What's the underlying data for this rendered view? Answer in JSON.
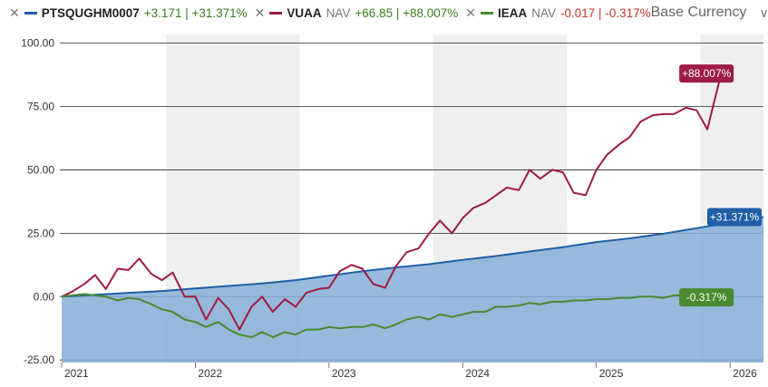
{
  "legend": {
    "items": [
      {
        "ticker": "PTSQUGHM0007",
        "nav_label": "",
        "change": "+3.171 | +31.371%",
        "change_sign": "pos",
        "color": "#1f5fa6"
      },
      {
        "ticker": "VUAA",
        "nav_label": "NAV",
        "change": "+66.85 | +88.007%",
        "change_sign": "pos",
        "color": "#9e1b46"
      },
      {
        "ticker": "IEAA",
        "nav_label": "NAV",
        "change": "-0.017 | -0.317%",
        "change_sign": "neg",
        "color": "#4a8a2e"
      }
    ],
    "currency_label": "Base Currency",
    "chevron_icon": "chevron-down-icon",
    "close_icon": "close-icon"
  },
  "chart_data": {
    "type": "line",
    "y_ticks": [
      "100.00",
      "75.00",
      "50.00",
      "25.00",
      "0.00",
      "-25.00"
    ],
    "y_tick_values": [
      100,
      75,
      50,
      25,
      0,
      -25
    ],
    "ylim": [
      -26,
      102
    ],
    "xlim": [
      2021.0,
      2026.25
    ],
    "x_ticks": [
      "2021",
      "2022",
      "2023",
      "2024",
      "2025",
      "2026"
    ],
    "x_tick_values": [
      2021,
      2022,
      2023,
      2024,
      2025,
      2026
    ],
    "shaded_years": [
      [
        2021.78,
        2022.78
      ],
      [
        2023.78,
        2024.78
      ],
      [
        2025.78,
        2026.25
      ]
    ],
    "grid": true,
    "series": [
      {
        "name": "PTSQUGHM0007",
        "color": "#1f5fa6",
        "fill": "#86aed6",
        "end_label": "+31.371%",
        "points": [
          [
            2021.0,
            0
          ],
          [
            2021.25,
            0.7
          ],
          [
            2021.5,
            1.5
          ],
          [
            2021.75,
            2.2
          ],
          [
            2022.0,
            3.2
          ],
          [
            2022.25,
            4.2
          ],
          [
            2022.5,
            5.2
          ],
          [
            2022.75,
            6.5
          ],
          [
            2023.0,
            8.3
          ],
          [
            2023.25,
            10
          ],
          [
            2023.5,
            11.5
          ],
          [
            2023.75,
            12.8
          ],
          [
            2024.0,
            14.5
          ],
          [
            2024.25,
            16
          ],
          [
            2024.5,
            17.8
          ],
          [
            2024.75,
            19.5
          ],
          [
            2025.0,
            21.5
          ],
          [
            2025.25,
            23
          ],
          [
            2025.5,
            24.8
          ],
          [
            2025.75,
            27
          ],
          [
            2026.0,
            29.2
          ],
          [
            2026.25,
            31.371
          ]
        ]
      },
      {
        "name": "VUAA",
        "color": "#9e1b46",
        "end_label": "+88.007%",
        "points": [
          [
            2021.0,
            0
          ],
          [
            2021.08,
            2
          ],
          [
            2021.17,
            5
          ],
          [
            2021.25,
            8.5
          ],
          [
            2021.33,
            3
          ],
          [
            2021.42,
            11
          ],
          [
            2021.5,
            10.5
          ],
          [
            2021.58,
            15
          ],
          [
            2021.67,
            9
          ],
          [
            2021.75,
            6.5
          ],
          [
            2021.83,
            9.5
          ],
          [
            2021.92,
            0
          ],
          [
            2022.0,
            0
          ],
          [
            2022.08,
            -9
          ],
          [
            2022.17,
            -0.5
          ],
          [
            2022.25,
            -5
          ],
          [
            2022.33,
            -13
          ],
          [
            2022.42,
            -4
          ],
          [
            2022.5,
            0
          ],
          [
            2022.58,
            -6
          ],
          [
            2022.67,
            -1
          ],
          [
            2022.75,
            -4
          ],
          [
            2022.83,
            1.5
          ],
          [
            2022.92,
            3
          ],
          [
            2023.0,
            3.5
          ],
          [
            2023.08,
            10
          ],
          [
            2023.17,
            12.5
          ],
          [
            2023.25,
            11
          ],
          [
            2023.33,
            5
          ],
          [
            2023.42,
            3.5
          ],
          [
            2023.5,
            12
          ],
          [
            2023.58,
            17.5
          ],
          [
            2023.67,
            19
          ],
          [
            2023.75,
            25
          ],
          [
            2023.83,
            30
          ],
          [
            2023.92,
            25
          ],
          [
            2024.0,
            31
          ],
          [
            2024.08,
            35
          ],
          [
            2024.17,
            37
          ],
          [
            2024.25,
            40
          ],
          [
            2024.33,
            43
          ],
          [
            2024.42,
            42
          ],
          [
            2024.5,
            50
          ],
          [
            2024.58,
            46.5
          ],
          [
            2024.67,
            50
          ],
          [
            2024.75,
            49
          ],
          [
            2024.83,
            41
          ],
          [
            2024.92,
            40
          ],
          [
            2025.0,
            50
          ],
          [
            2025.08,
            56
          ],
          [
            2025.17,
            60
          ],
          [
            2025.25,
            63
          ],
          [
            2025.33,
            69
          ],
          [
            2025.42,
            71.5
          ],
          [
            2025.5,
            72
          ],
          [
            2025.58,
            72
          ],
          [
            2025.67,
            74.5
          ],
          [
            2025.75,
            73.5
          ],
          [
            2025.83,
            66
          ],
          [
            2025.92,
            85
          ],
          [
            2026.0,
            88.007
          ]
        ]
      },
      {
        "name": "IEAA",
        "color": "#4a8a2e",
        "end_label": "-0.317%",
        "points": [
          [
            2021.0,
            0
          ],
          [
            2021.08,
            0.5
          ],
          [
            2021.17,
            1
          ],
          [
            2021.25,
            0.5
          ],
          [
            2021.33,
            0
          ],
          [
            2021.42,
            -1.5
          ],
          [
            2021.5,
            -0.5
          ],
          [
            2021.58,
            -1
          ],
          [
            2021.67,
            -3
          ],
          [
            2021.75,
            -5
          ],
          [
            2021.83,
            -6
          ],
          [
            2021.92,
            -9
          ],
          [
            2022.0,
            -10
          ],
          [
            2022.08,
            -12
          ],
          [
            2022.17,
            -10
          ],
          [
            2022.25,
            -13
          ],
          [
            2022.33,
            -15
          ],
          [
            2022.42,
            -16
          ],
          [
            2022.5,
            -14
          ],
          [
            2022.58,
            -16
          ],
          [
            2022.67,
            -14
          ],
          [
            2022.75,
            -15
          ],
          [
            2022.83,
            -13
          ],
          [
            2022.92,
            -13
          ],
          [
            2023.0,
            -12
          ],
          [
            2023.08,
            -12.5
          ],
          [
            2023.17,
            -12
          ],
          [
            2023.25,
            -12
          ],
          [
            2023.33,
            -11
          ],
          [
            2023.42,
            -12.5
          ],
          [
            2023.5,
            -11
          ],
          [
            2023.58,
            -9
          ],
          [
            2023.67,
            -8
          ],
          [
            2023.75,
            -9
          ],
          [
            2023.83,
            -7
          ],
          [
            2023.92,
            -8
          ],
          [
            2024.0,
            -7
          ],
          [
            2024.08,
            -6
          ],
          [
            2024.17,
            -6
          ],
          [
            2024.25,
            -4
          ],
          [
            2024.33,
            -4
          ],
          [
            2024.42,
            -3.5
          ],
          [
            2024.5,
            -2.5
          ],
          [
            2024.58,
            -3
          ],
          [
            2024.67,
            -2
          ],
          [
            2024.75,
            -2
          ],
          [
            2024.83,
            -1.5
          ],
          [
            2024.92,
            -1.5
          ],
          [
            2025.0,
            -1
          ],
          [
            2025.08,
            -1
          ],
          [
            2025.17,
            -0.5
          ],
          [
            2025.25,
            -0.5
          ],
          [
            2025.33,
            0
          ],
          [
            2025.42,
            0
          ],
          [
            2025.5,
            -0.5
          ],
          [
            2025.58,
            0.5
          ],
          [
            2025.67,
            0.5
          ],
          [
            2025.75,
            -0.5
          ],
          [
            2025.83,
            -1
          ],
          [
            2025.92,
            -0.5
          ],
          [
            2026.0,
            -0.317
          ]
        ]
      }
    ]
  }
}
